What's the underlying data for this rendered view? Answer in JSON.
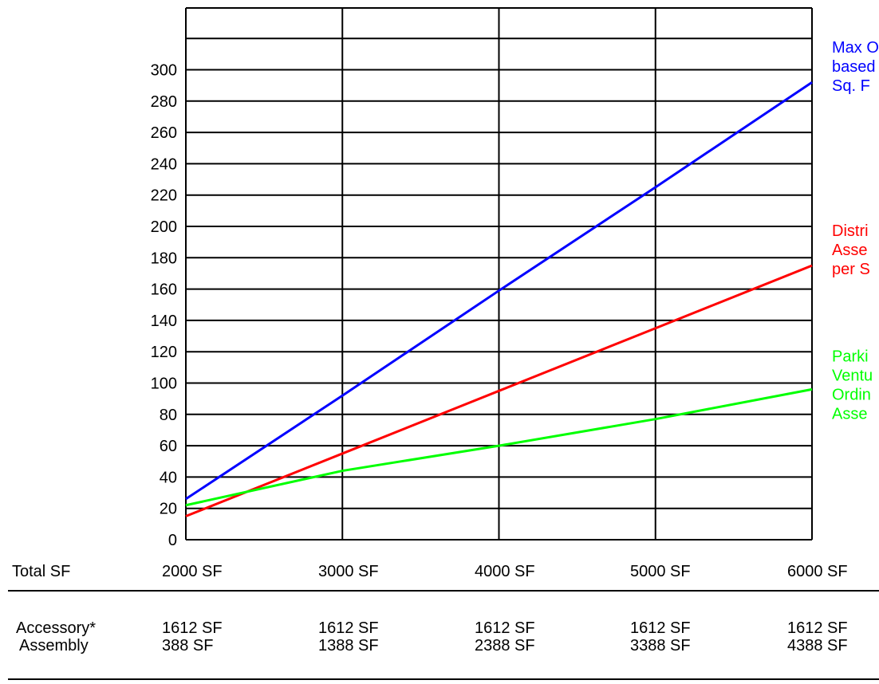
{
  "chart_data": {
    "type": "line",
    "title": "",
    "xlabel": "",
    "ylabel": "",
    "x": [
      2000,
      3000,
      4000,
      5000,
      6000
    ],
    "ylim": [
      0,
      300
    ],
    "yticks": [
      0,
      20,
      40,
      60,
      80,
      100,
      120,
      140,
      160,
      180,
      200,
      220,
      240,
      260,
      280,
      300
    ],
    "grid": true,
    "series": [
      {
        "name": "Max O... based ... Sq. F...",
        "label_lines": [
          "Max O",
          "based",
          "Sq. F"
        ],
        "color": "#0000ff",
        "values": [
          26,
          92,
          159,
          225,
          292
        ]
      },
      {
        "name": "Distri... Asse... per S...",
        "label_lines": [
          "Distri",
          "Asse",
          "per S"
        ],
        "color": "#ff0000",
        "values": [
          15,
          55,
          95,
          135,
          175
        ]
      },
      {
        "name": "Parki... Ventu... Ordin... Asse...",
        "label_lines": [
          "Parki",
          "Ventu",
          "Ordin",
          "Asse"
        ],
        "color": "#00ff00",
        "values": [
          22,
          44,
          60,
          77,
          96
        ]
      }
    ]
  },
  "table": {
    "total_label": "Total SF",
    "totals": [
      "2000 SF",
      "3000 SF",
      "4000 SF",
      "5000 SF",
      "6000 SF"
    ],
    "accessory_label": "Accessory*",
    "assembly_label": "Assembly",
    "accessory": [
      "1612 SF",
      "1612 SF",
      "1612 SF",
      "1612 SF",
      "1612 SF"
    ],
    "assembly": [
      "388 SF",
      "1388 SF",
      "2388 SF",
      "3388 SF",
      "4388 SF"
    ]
  }
}
